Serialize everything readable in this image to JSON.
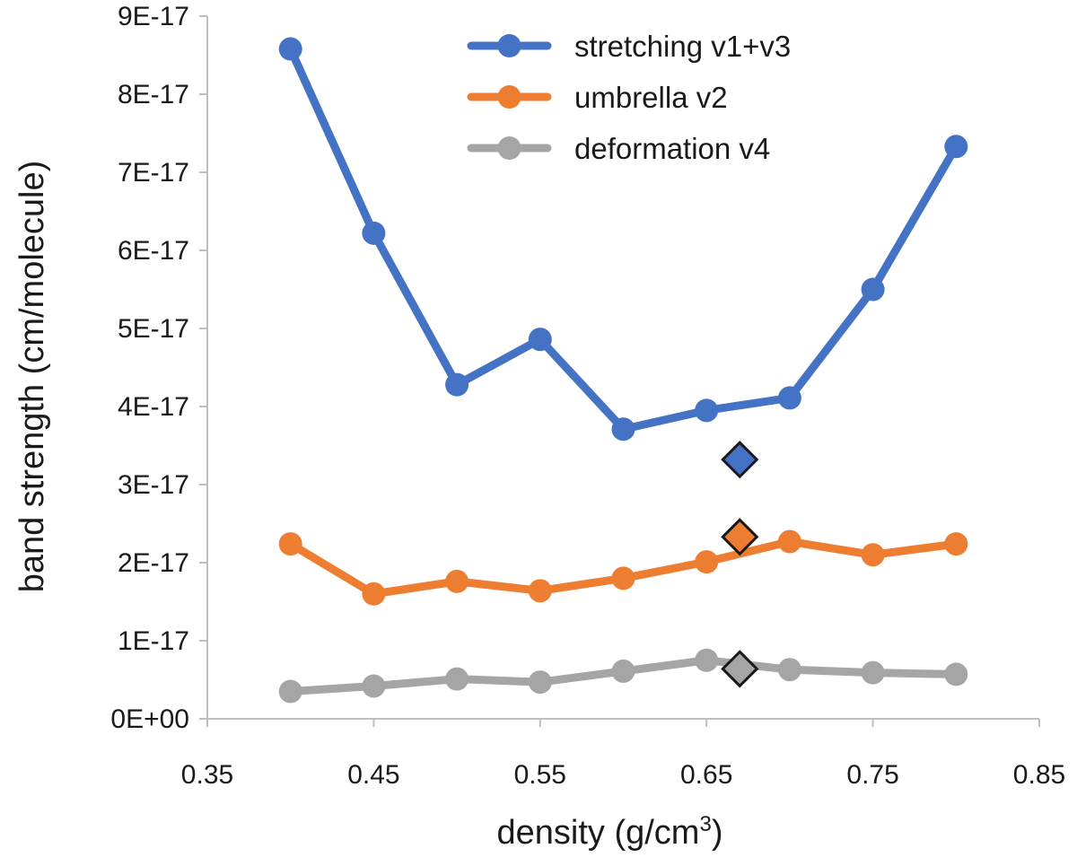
{
  "chart_data": {
    "type": "line",
    "xlabel": "density (g/cm",
    "xlabel_sup": "3",
    "xlabel_close": ")",
    "ylabel": "band strength (cm/molecule)",
    "xlim": [
      0.35,
      0.85
    ],
    "ylim": [
      0,
      9e-17
    ],
    "x_ticks": [
      0.35,
      0.45,
      0.55,
      0.65,
      0.75,
      0.85
    ],
    "x_tick_labels": [
      "0.35",
      "0.45",
      "0.55",
      "0.65",
      "0.75",
      "0.85"
    ],
    "y_ticks": [
      0,
      1e-17,
      2e-17,
      3e-17,
      4e-17,
      5e-17,
      6e-17,
      7e-17,
      8e-17,
      9e-17
    ],
    "y_tick_labels": [
      "0E+00",
      "1E-17",
      "2E-17",
      "3E-17",
      "4E-17",
      "5E-17",
      "6E-17",
      "7E-17",
      "8E-17",
      "9E-17"
    ],
    "grid": false,
    "legend_position": "top-right",
    "x": [
      0.4,
      0.45,
      0.5,
      0.55,
      0.6,
      0.65,
      0.7,
      0.75,
      0.8
    ],
    "series": [
      {
        "name": "stretching v1+v3",
        "color": "#4472c4",
        "values": [
          8.58e-17,
          6.22e-17,
          4.28e-17,
          4.86e-17,
          3.71e-17,
          3.95e-17,
          4.11e-17,
          5.5e-17,
          7.33e-17
        ],
        "reference": {
          "x": 0.67,
          "y": 3.32e-17
        }
      },
      {
        "name": "umbrella v2",
        "color": "#ed7d31",
        "values": [
          2.24e-17,
          1.6e-17,
          1.76e-17,
          1.64e-17,
          1.8e-17,
          2.01e-17,
          2.27e-17,
          2.1e-17,
          2.24e-17
        ],
        "reference": {
          "x": 0.67,
          "y": 2.33e-17
        }
      },
      {
        "name": "deformation v4",
        "color": "#a5a5a5",
        "values": [
          3.5e-18,
          4.2e-18,
          5.1e-18,
          4.7e-18,
          6.1e-18,
          7.5e-18,
          6.3e-18,
          5.9e-18,
          5.7e-18
        ],
        "reference": {
          "x": 0.67,
          "y": 6.4e-18
        }
      }
    ]
  }
}
